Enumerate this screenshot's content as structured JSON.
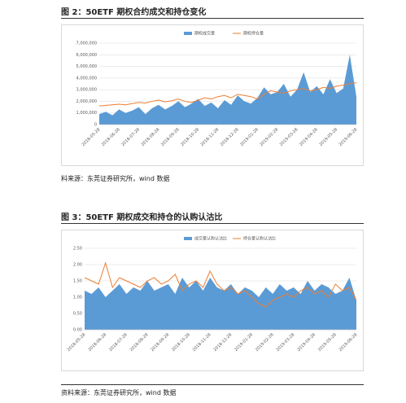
{
  "chart_data": [
    {
      "type": "line",
      "title": "图 2：50ETF 期权合约成交和持仓变化",
      "source": "料来源：东莞证券研究所，wind 数据",
      "categories": [
        "2018-05-28",
        null,
        null,
        "2018-06-28",
        null,
        null,
        "2018-07-28",
        null,
        null,
        "2018-08-28",
        null,
        null,
        "2018-09-28",
        null,
        null,
        "2018-10-28",
        null,
        null,
        "2018-11-28",
        null,
        null,
        "2018-12-28",
        null,
        null,
        "2019-01-28",
        null,
        null,
        "2019-02-28",
        null,
        null,
        "2019-03-28",
        null,
        null,
        "2019-04-28",
        null,
        null,
        "2019-05-28",
        null,
        null,
        "2019-06-28"
      ],
      "series": [
        {
          "name": "期权成交量",
          "kind": "area",
          "color": "#5b9bd5",
          "values": [
            900000,
            1100000,
            800000,
            1300000,
            1000000,
            1200000,
            1500000,
            900000,
            1400000,
            1700000,
            1300000,
            1600000,
            2000000,
            1500000,
            1800000,
            2200000,
            1600000,
            1900000,
            1400000,
            2100000,
            1700000,
            2500000,
            2000000,
            1800000,
            2300000,
            3200000,
            2600000,
            2800000,
            3500000,
            2400000,
            3000000,
            4500000,
            2800000,
            3300000,
            2600000,
            3900000,
            2700000,
            3100000,
            6000000,
            2400000
          ]
        },
        {
          "name": "期权持仓量",
          "kind": "line",
          "color": "#ed7d31",
          "values": [
            1600000,
            1650000,
            1700000,
            1750000,
            1700000,
            1800000,
            1900000,
            1850000,
            2000000,
            2100000,
            1950000,
            2050000,
            2200000,
            2000000,
            1900000,
            2100000,
            2300000,
            2200000,
            2400000,
            2500000,
            2300000,
            2600000,
            2500000,
            2400000,
            2200000,
            2600000,
            2900000,
            2800000,
            2700000,
            2900000,
            3000000,
            3100000,
            2900000,
            3000000,
            3200000,
            3100000,
            3300000,
            3400000,
            3500000,
            3600000
          ]
        }
      ],
      "ylim": [
        0,
        7000000
      ],
      "yticks": [
        0,
        {
          "value": 1000000,
          "label": "1,000,000"
        },
        {
          "value": 2000000,
          "label": "2,000,000"
        },
        {
          "value": 3000000,
          "label": "3,000,000"
        },
        {
          "value": 4000000,
          "label": "4,000,000"
        },
        {
          "value": 5000000,
          "label": "5,000,000"
        },
        {
          "value": 6000000,
          "label": "6,000,000"
        },
        {
          "value": 7000000,
          "label": "7,000,000"
        }
      ],
      "grid": true
    },
    {
      "type": "line",
      "title": "图 3：50ETF 期权成交和持仓的认购认沽比",
      "source": "资料来源：东莞证券研究所，wind 数据",
      "categories": [
        "2018-05-28",
        null,
        null,
        "2018-06-28",
        null,
        null,
        "2018-07-28",
        null,
        null,
        "2018-08-28",
        null,
        null,
        "2018-09-28",
        null,
        null,
        "2018-10-28",
        null,
        null,
        "2018-11-28",
        null,
        null,
        "2018-12-28",
        null,
        null,
        "2019-01-28",
        null,
        null,
        "2019-02-28",
        null,
        null,
        "2019-03-28",
        null,
        null,
        "2019-04-28",
        null,
        null,
        "2019-05-28",
        null,
        null,
        "2019-06-28"
      ],
      "series": [
        {
          "name": "成交量认购认沽比",
          "kind": "area",
          "color": "#5b9bd5",
          "values": [
            1.2,
            1.1,
            1.3,
            1.0,
            1.2,
            1.4,
            1.1,
            1.3,
            1.2,
            1.5,
            1.2,
            1.3,
            1.4,
            1.1,
            1.6,
            1.3,
            1.5,
            1.2,
            1.6,
            1.3,
            1.2,
            1.4,
            1.1,
            1.3,
            1.2,
            1.0,
            1.3,
            1.1,
            1.4,
            1.2,
            1.3,
            1.1,
            1.5,
            1.2,
            1.4,
            1.3,
            1.1,
            1.2,
            1.6,
            0.9
          ]
        },
        {
          "name": "持仓量认购认沽比",
          "kind": "line",
          "color": "#ed7d31",
          "values": [
            1.6,
            1.5,
            1.4,
            2.05,
            1.3,
            1.6,
            1.5,
            1.4,
            1.3,
            1.5,
            1.6,
            1.4,
            1.5,
            1.7,
            1.2,
            1.4,
            1.5,
            1.3,
            1.8,
            1.4,
            1.2,
            1.3,
            1.1,
            1.2,
            1.0,
            0.8,
            0.7,
            0.9,
            1.0,
            1.1,
            1.0,
            1.2,
            1.3,
            1.1,
            1.2,
            1.0,
            1.4,
            1.2,
            1.3,
            0.9
          ]
        }
      ],
      "ylim": [
        0,
        2.5
      ],
      "yticks": [
        {
          "value": 0,
          "label": "0.00"
        },
        {
          "value": 0.5,
          "label": "0.50"
        },
        {
          "value": 1,
          "label": "1.00"
        },
        {
          "value": 1.5,
          "label": "1.50"
        },
        {
          "value": 2,
          "label": "2.00"
        },
        {
          "value": 2.5,
          "label": "2.50"
        }
      ],
      "grid": true
    }
  ]
}
